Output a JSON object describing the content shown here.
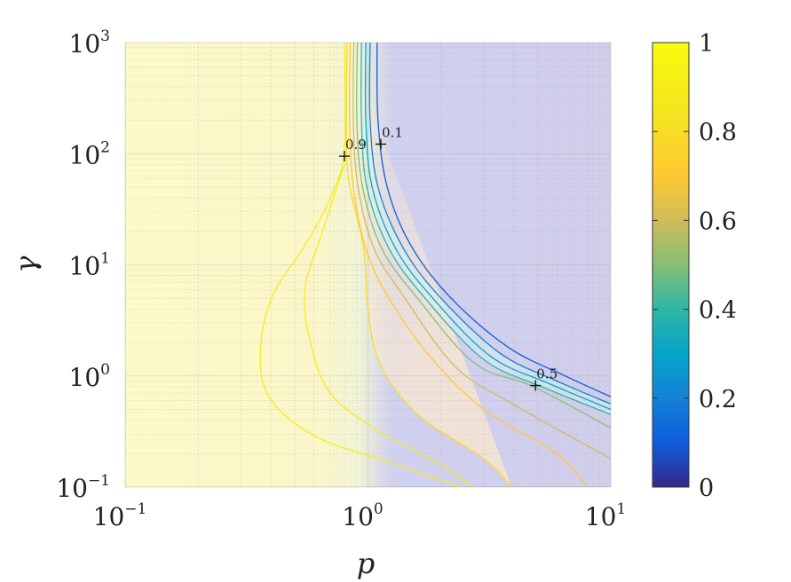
{
  "chart_data": {
    "type": "heatmap",
    "subtype": "filled-contour",
    "xlabel": "p",
    "ylabel": "γ",
    "x_scale": "log",
    "y_scale": "log",
    "xlim": [
      0.1,
      10
    ],
    "ylim": [
      0.1,
      1000
    ],
    "x_ticks": [
      {
        "base": "10",
        "exp": "−1",
        "value": 0.1
      },
      {
        "base": "10",
        "exp": "0",
        "value": 1
      },
      {
        "base": "10",
        "exp": "1",
        "value": 10
      }
    ],
    "y_ticks": [
      {
        "base": "10",
        "exp": "−1",
        "value": 0.1
      },
      {
        "base": "10",
        "exp": "0",
        "value": 1
      },
      {
        "base": "10",
        "exp": "1",
        "value": 10
      },
      {
        "base": "10",
        "exp": "2",
        "value": 100
      },
      {
        "base": "10",
        "exp": "3",
        "value": 1000
      }
    ],
    "grid": true,
    "colormap": "parula",
    "colorbar": {
      "range": [
        0,
        1
      ],
      "ticks": [
        "0",
        "0.2",
        "0.4",
        "0.6",
        "0.8",
        "1"
      ],
      "tick_values": [
        0,
        0.2,
        0.4,
        0.6,
        0.8,
        1
      ]
    },
    "contour_levels": [
      0.1,
      0.2,
      0.3,
      0.4,
      0.5,
      0.6,
      0.7,
      0.8,
      0.9
    ],
    "contour_labels": [
      {
        "text": "0.9",
        "p": 0.8,
        "gamma": 95
      },
      {
        "text": "0.1",
        "p": 1.13,
        "gamma": 122
      },
      {
        "text": "0.5",
        "p": 4.9,
        "gamma": 0.82
      }
    ],
    "contours": [
      {
        "level": 0.1,
        "points": [
          [
            1.09,
            1000
          ],
          [
            1.1,
            200
          ],
          [
            1.2,
            50
          ],
          [
            1.5,
            15
          ],
          [
            2.2,
            5
          ],
          [
            3.8,
            1.8
          ],
          [
            6.5,
            1.0
          ],
          [
            10,
            0.65
          ]
        ]
      },
      {
        "level": 0.2,
        "points": [
          [
            1.02,
            1000
          ],
          [
            1.02,
            200
          ],
          [
            1.1,
            50
          ],
          [
            1.4,
            14
          ],
          [
            2.0,
            5
          ],
          [
            3.5,
            1.6
          ],
          [
            6,
            0.9
          ],
          [
            10,
            0.56
          ]
        ]
      },
      {
        "level": 0.3,
        "points": [
          [
            0.98,
            1000
          ],
          [
            0.98,
            200
          ],
          [
            1.04,
            50
          ],
          [
            1.3,
            14
          ],
          [
            1.85,
            5
          ],
          [
            3.2,
            1.5
          ],
          [
            5.6,
            0.85
          ],
          [
            10,
            0.5
          ]
        ]
      },
      {
        "level": 0.4,
        "points": [
          [
            0.94,
            1000
          ],
          [
            0.94,
            200
          ],
          [
            0.99,
            50
          ],
          [
            1.22,
            14
          ],
          [
            1.72,
            5
          ],
          [
            3.0,
            1.4
          ],
          [
            5.2,
            0.8
          ],
          [
            10,
            0.45
          ]
        ]
      },
      {
        "level": 0.5,
        "points": [
          [
            0.905,
            1000
          ],
          [
            0.9,
            200
          ],
          [
            0.95,
            50
          ],
          [
            1.14,
            14
          ],
          [
            1.6,
            5
          ],
          [
            2.75,
            1.3
          ],
          [
            4.8,
            0.8
          ],
          [
            10,
            0.34
          ]
        ]
      },
      {
        "level": 0.6,
        "points": [
          [
            0.875,
            1000
          ],
          [
            0.87,
            200
          ],
          [
            0.91,
            50
          ],
          [
            1.06,
            14
          ],
          [
            1.42,
            5
          ],
          [
            2.3,
            1.2
          ],
          [
            4.0,
            0.55
          ],
          [
            10,
            0.18
          ]
        ]
      },
      {
        "level": 0.7,
        "points": [
          [
            0.845,
            1000
          ],
          [
            0.84,
            200
          ],
          [
            0.87,
            50
          ],
          [
            0.98,
            14
          ],
          [
            1.22,
            5
          ],
          [
            1.8,
            1.5
          ],
          [
            3.0,
            0.5
          ],
          [
            6,
            0.2
          ],
          [
            8,
            0.1
          ]
        ]
      },
      {
        "level": 0.8,
        "points": [
          [
            0.82,
            1000
          ],
          [
            0.815,
            200
          ],
          [
            0.83,
            60
          ],
          [
            0.96,
            14
          ],
          [
            1.0,
            4
          ],
          [
            1.12,
            1.3
          ],
          [
            1.6,
            0.45
          ],
          [
            3.0,
            0.18
          ],
          [
            3.9,
            0.1
          ]
        ]
      },
      {
        "level": 0.9,
        "points": [
          [
            0.8,
            1000
          ],
          [
            0.8,
            110
          ],
          [
            0.7,
            40
          ],
          [
            0.55,
            15
          ],
          [
            0.4,
            5
          ],
          [
            0.36,
            1.5
          ],
          [
            0.4,
            0.6
          ],
          [
            0.62,
            0.28
          ],
          [
            1.2,
            0.17
          ],
          [
            2.4,
            0.1
          ]
        ]
      },
      {
        "level": 0.9,
        "points": [
          [
            0.8,
            80
          ],
          [
            0.65,
            20
          ],
          [
            0.55,
            6
          ],
          [
            0.58,
            2.0
          ],
          [
            0.7,
            0.7
          ],
          [
            1.1,
            0.32
          ],
          [
            1.9,
            0.17
          ],
          [
            2.7,
            0.1
          ]
        ]
      }
    ]
  }
}
